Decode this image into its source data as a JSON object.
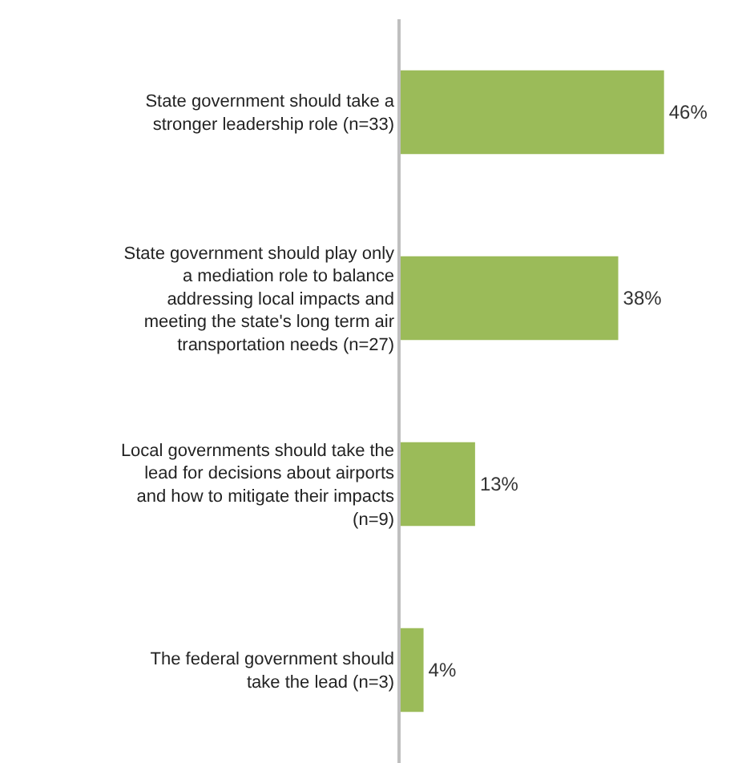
{
  "chart_data": {
    "type": "bar",
    "orientation": "horizontal",
    "categories": [
      "State government should take a stronger leadership role (n=33)",
      "State government should play only a mediation role to balance addressing local impacts and meeting the state's long term air transportation needs (n=27)",
      "Local governments should take the lead for decisions about airports and how to mitigate their impacts (n=9)",
      "The federal government should take the lead (n=3)"
    ],
    "values": [
      46,
      38,
      13,
      4
    ],
    "value_labels": [
      "46%",
      "38%",
      "13%",
      "4%"
    ],
    "color": "#9bbb59"
  }
}
